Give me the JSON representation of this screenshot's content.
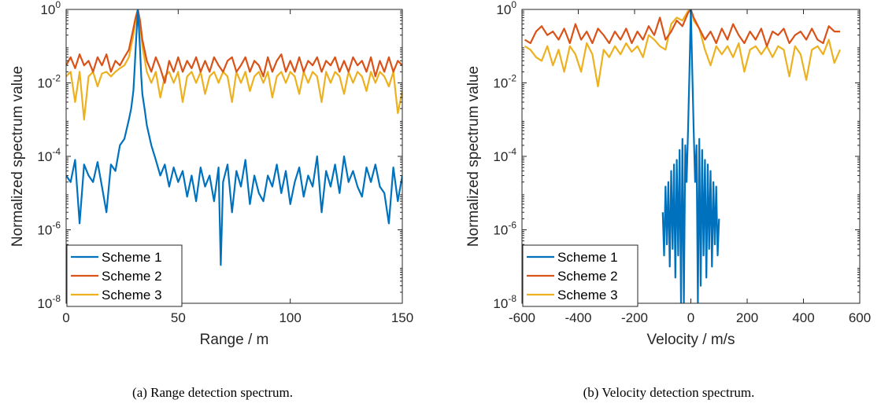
{
  "chart_data": [
    {
      "type": "line",
      "caption": "(a) Range detection spectrum.",
      "xlabel": "Range / m",
      "ylabel": "Normalized spectrum value",
      "xlim": [
        0,
        150
      ],
      "ylim": [
        1e-08,
        1
      ],
      "yscale": "log",
      "xticks": [
        0,
        50,
        100,
        150
      ],
      "yticks": [
        {
          "value": 1e-08,
          "base": "10",
          "exp": "-8"
        },
        {
          "value": 1e-06,
          "base": "10",
          "exp": "-6"
        },
        {
          "value": 0.0001,
          "base": "10",
          "exp": "-4"
        },
        {
          "value": 0.01,
          "base": "10",
          "exp": "-2"
        },
        {
          "value": 1,
          "base": "10",
          "exp": "0"
        }
      ],
      "grid": false,
      "legend_position": "bottom-left",
      "series": [
        {
          "name": "Scheme 1",
          "color": "#0072BD",
          "x": [
            0,
            2,
            4,
            6,
            8,
            10,
            12,
            14,
            16,
            18,
            20,
            22,
            24,
            26,
            28,
            29,
            30,
            30.5,
            31,
            31.5,
            32,
            32.5,
            33,
            33.5,
            34,
            35,
            36,
            38,
            40,
            42,
            44,
            46,
            48,
            50,
            52,
            54,
            56,
            58,
            60,
            62,
            64,
            66,
            68,
            69,
            70,
            72,
            74,
            76,
            78,
            80,
            82,
            84,
            86,
            88,
            90,
            92,
            94,
            96,
            98,
            100,
            102,
            104,
            106,
            108,
            110,
            112,
            114,
            116,
            118,
            120,
            122,
            124,
            126,
            128,
            130,
            132,
            134,
            136,
            138,
            140,
            142,
            144,
            146,
            148,
            150
          ],
          "y": [
            3e-05,
            2e-05,
            8e-05,
            1.5e-06,
            6e-05,
            3e-05,
            2e-05,
            7e-05,
            1.5e-05,
            3e-06,
            6e-05,
            4e-05,
            0.0002,
            0.0003,
            0.001,
            0.002,
            0.006,
            0.02,
            0.08,
            0.3,
            1.0,
            0.3,
            0.08,
            0.015,
            0.005,
            0.002,
            0.0007,
            0.0002,
            8e-05,
            3e-05,
            6e-05,
            1.5e-05,
            5e-05,
            2e-05,
            4e-05,
            8e-06,
            3e-05,
            6e-06,
            5e-05,
            1.5e-05,
            3e-05,
            6e-06,
            5e-05,
            1.1e-07,
            2e-05,
            6e-05,
            3e-06,
            4e-05,
            1.5e-05,
            8e-05,
            5e-06,
            3e-05,
            1e-05,
            6e-06,
            3e-05,
            1.5e-05,
            6e-05,
            1e-05,
            4e-05,
            5e-06,
            2e-05,
            5e-05,
            8e-06,
            3e-05,
            1.5e-05,
            0.0001,
            3e-06,
            4e-05,
            1.5e-05,
            6e-05,
            1e-05,
            0.0001,
            2e-05,
            4e-05,
            1.5e-05,
            8e-06,
            5e-05,
            2e-05,
            6e-05,
            1.5e-05,
            1e-05,
            1.5e-06,
            5e-05,
            6e-06,
            3e-05
          ]
        },
        {
          "name": "Scheme 2",
          "color": "#D95319",
          "x": [
            0,
            2,
            4,
            6,
            8,
            10,
            12,
            14,
            16,
            18,
            20,
            22,
            24,
            26,
            28,
            30,
            31,
            32,
            33,
            34,
            36,
            38,
            40,
            42,
            44,
            46,
            48,
            50,
            52,
            54,
            56,
            58,
            60,
            62,
            64,
            66,
            68,
            70,
            72,
            74,
            76,
            78,
            80,
            82,
            84,
            86,
            88,
            90,
            92,
            94,
            96,
            98,
            100,
            102,
            104,
            106,
            108,
            110,
            112,
            114,
            116,
            118,
            120,
            122,
            124,
            126,
            128,
            130,
            132,
            134,
            136,
            138,
            140,
            142,
            144,
            146,
            148,
            150
          ],
          "y": [
            0.03,
            0.05,
            0.025,
            0.06,
            0.03,
            0.04,
            0.02,
            0.05,
            0.03,
            0.06,
            0.02,
            0.04,
            0.03,
            0.05,
            0.08,
            0.3,
            0.6,
            1.0,
            0.5,
            0.15,
            0.04,
            0.02,
            0.05,
            0.025,
            0.01,
            0.04,
            0.02,
            0.05,
            0.02,
            0.04,
            0.025,
            0.05,
            0.02,
            0.04,
            0.02,
            0.05,
            0.03,
            0.02,
            0.04,
            0.05,
            0.02,
            0.03,
            0.05,
            0.02,
            0.04,
            0.03,
            0.015,
            0.05,
            0.02,
            0.04,
            0.06,
            0.02,
            0.04,
            0.02,
            0.05,
            0.02,
            0.04,
            0.03,
            0.05,
            0.02,
            0.04,
            0.03,
            0.05,
            0.02,
            0.04,
            0.02,
            0.05,
            0.03,
            0.04,
            0.02,
            0.05,
            0.015,
            0.04,
            0.02,
            0.05,
            0.02,
            0.04,
            0.03
          ]
        },
        {
          "name": "Scheme 3",
          "color": "#EDB120",
          "x": [
            0,
            2,
            4,
            6,
            8,
            10,
            12,
            14,
            16,
            18,
            20,
            22,
            24,
            26,
            28,
            30,
            31,
            32,
            33,
            34,
            36,
            38,
            40,
            42,
            44,
            46,
            48,
            50,
            52,
            54,
            56,
            58,
            60,
            62,
            64,
            66,
            68,
            70,
            72,
            74,
            76,
            78,
            80,
            82,
            84,
            86,
            88,
            90,
            92,
            94,
            96,
            98,
            100,
            102,
            104,
            106,
            108,
            110,
            112,
            114,
            116,
            118,
            120,
            122,
            124,
            126,
            128,
            130,
            132,
            134,
            136,
            138,
            140,
            142,
            144,
            146,
            148,
            150
          ],
          "y": [
            0.015,
            0.02,
            0.003,
            0.02,
            0.001,
            0.015,
            0.02,
            0.008,
            0.018,
            0.02,
            0.015,
            0.02,
            0.025,
            0.03,
            0.05,
            0.2,
            0.5,
            1.0,
            0.4,
            0.1,
            0.02,
            0.01,
            0.02,
            0.004,
            0.015,
            0.02,
            0.01,
            0.02,
            0.003,
            0.015,
            0.02,
            0.01,
            0.02,
            0.005,
            0.015,
            0.02,
            0.01,
            0.02,
            0.015,
            0.003,
            0.02,
            0.01,
            0.02,
            0.006,
            0.015,
            0.02,
            0.01,
            0.02,
            0.004,
            0.015,
            0.02,
            0.01,
            0.02,
            0.015,
            0.005,
            0.02,
            0.01,
            0.02,
            0.015,
            0.003,
            0.02,
            0.01,
            0.02,
            0.015,
            0.005,
            0.02,
            0.01,
            0.02,
            0.015,
            0.006,
            0.02,
            0.01,
            0.02,
            0.015,
            0.008,
            0.02,
            0.0015,
            0.006
          ]
        }
      ]
    },
    {
      "type": "line",
      "caption": "(b) Velocity detection spectrum.",
      "xlabel": "Velocity / m/s",
      "ylabel": "Normalized spectrum value",
      "xlim": [
        -600,
        600
      ],
      "ylim": [
        1e-08,
        1
      ],
      "yscale": "log",
      "xticks": [
        -600,
        -400,
        -200,
        0,
        200,
        400,
        600
      ],
      "yticks": [
        {
          "value": 1e-08,
          "base": "10",
          "exp": "-8"
        },
        {
          "value": 1e-06,
          "base": "10",
          "exp": "-6"
        },
        {
          "value": 0.0001,
          "base": "10",
          "exp": "-4"
        },
        {
          "value": 0.01,
          "base": "10",
          "exp": "-2"
        },
        {
          "value": 1,
          "base": "10",
          "exp": "0"
        }
      ],
      "grid": false,
      "legend_position": "bottom-left",
      "series": [
        {
          "name": "Scheme 1",
          "color": "#0072BD",
          "x": [
            -100,
            -95,
            -90,
            -85,
            -80,
            -75,
            -70,
            -65,
            -60,
            -55,
            -50,
            -45,
            -40,
            -35,
            -30,
            -25,
            -20,
            -15,
            -10,
            -5,
            0,
            5,
            10,
            15,
            20,
            25,
            30,
            35,
            40,
            45,
            50,
            55,
            60,
            65,
            70,
            75,
            80,
            85,
            90,
            95,
            100
          ],
          "y": [
            3e-06,
            2e-07,
            1.5e-05,
            4e-07,
            2e-05,
            1e-07,
            4e-05,
            3e-07,
            6e-05,
            5e-08,
            8e-05,
            2e-07,
            0.00015,
            1e-08,
            0.0003,
            1e-08,
            0.0002,
            2e-05,
            0.0005,
            0.02,
            1.0,
            0.02,
            0.0005,
            2e-05,
            0.0002,
            1e-08,
            0.0003,
            3e-08,
            0.00015,
            2e-07,
            8e-05,
            5e-08,
            6e-05,
            3e-07,
            4e-05,
            1e-07,
            2e-05,
            4e-07,
            1.5e-05,
            2e-07,
            2e-06
          ]
        },
        {
          "name": "Scheme 2",
          "color": "#D95319",
          "x": [
            -590,
            -570,
            -550,
            -530,
            -510,
            -490,
            -470,
            -450,
            -430,
            -410,
            -390,
            -370,
            -350,
            -330,
            -310,
            -290,
            -270,
            -250,
            -230,
            -210,
            -190,
            -170,
            -150,
            -130,
            -110,
            -90,
            -70,
            -50,
            -30,
            -10,
            0,
            10,
            30,
            50,
            70,
            90,
            110,
            130,
            150,
            170,
            190,
            210,
            230,
            250,
            270,
            290,
            310,
            330,
            350,
            370,
            390,
            410,
            430,
            450,
            470,
            490,
            510,
            530
          ],
          "y": [
            0.15,
            0.12,
            0.25,
            0.35,
            0.2,
            0.25,
            0.15,
            0.3,
            0.12,
            0.4,
            0.15,
            0.25,
            0.12,
            0.3,
            0.2,
            0.12,
            0.25,
            0.15,
            0.3,
            0.12,
            0.25,
            0.15,
            0.35,
            0.2,
            0.6,
            0.15,
            0.25,
            0.5,
            0.35,
            0.8,
            1.0,
            0.6,
            0.3,
            0.15,
            0.25,
            0.12,
            0.3,
            0.15,
            0.4,
            0.2,
            0.12,
            0.25,
            0.15,
            0.3,
            0.1,
            0.25,
            0.2,
            0.3,
            0.12,
            0.2,
            0.25,
            0.15,
            0.3,
            0.15,
            0.12,
            0.35,
            0.25,
            0.25
          ]
        },
        {
          "name": "Scheme 3",
          "color": "#EDB120",
          "x": [
            -590,
            -570,
            -550,
            -530,
            -510,
            -490,
            -470,
            -450,
            -430,
            -410,
            -390,
            -370,
            -350,
            -330,
            -310,
            -290,
            -270,
            -250,
            -230,
            -210,
            -190,
            -170,
            -150,
            -130,
            -110,
            -90,
            -70,
            -50,
            -30,
            -10,
            0,
            10,
            30,
            50,
            70,
            90,
            110,
            130,
            150,
            170,
            190,
            210,
            230,
            250,
            270,
            290,
            310,
            330,
            350,
            370,
            390,
            410,
            430,
            450,
            470,
            490,
            510,
            530
          ],
          "y": [
            0.1,
            0.08,
            0.05,
            0.04,
            0.1,
            0.03,
            0.08,
            0.02,
            0.1,
            0.06,
            0.02,
            0.12,
            0.06,
            0.008,
            0.08,
            0.05,
            0.1,
            0.06,
            0.12,
            0.07,
            0.1,
            0.05,
            0.2,
            0.15,
            0.1,
            0.08,
            0.4,
            0.6,
            0.5,
            0.9,
            1.0,
            0.5,
            0.3,
            0.08,
            0.03,
            0.1,
            0.06,
            0.1,
            0.05,
            0.12,
            0.02,
            0.08,
            0.1,
            0.06,
            0.1,
            0.05,
            0.1,
            0.08,
            0.015,
            0.1,
            0.06,
            0.012,
            0.08,
            0.1,
            0.06,
            0.15,
            0.035,
            0.08
          ]
        }
      ]
    }
  ]
}
